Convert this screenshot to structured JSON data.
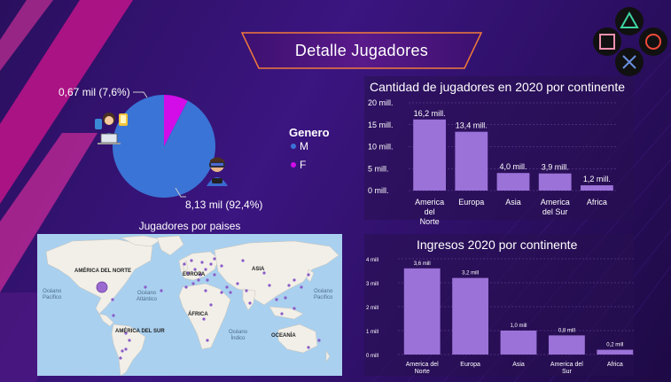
{
  "header": {
    "title": "Detalle Jugadores"
  },
  "pie": {
    "label_f": "0,67 mil (7,6%)",
    "label_m": "8,13 mil (92,4%)",
    "legend_title": "Genero",
    "legend": [
      {
        "key": "M",
        "color": "#3a74d6"
      },
      {
        "key": "F",
        "color": "#d20de8"
      }
    ],
    "chart_data": {
      "type": "pie",
      "slices": [
        {
          "name": "M",
          "value": 8.13,
          "percent": 92.4
        },
        {
          "name": "F",
          "value": 0.67,
          "percent": 7.6
        }
      ]
    }
  },
  "players_chart": {
    "title": "Cantidad de jugadores en 2020 por continente",
    "chart_data": {
      "type": "bar",
      "categories": [
        [
          "America",
          "del",
          "Norte"
        ],
        [
          "Europa"
        ],
        [
          "Asia"
        ],
        [
          "America",
          "del Sur"
        ],
        [
          "Africa"
        ]
      ],
      "values": [
        16.2,
        13.4,
        4.0,
        3.9,
        1.2
      ],
      "data_labels": [
        "16,2 mill.",
        "13,4 mill.",
        "4,0 mill.",
        "3,9 mill.",
        "1,2 mill."
      ],
      "yticks": [
        "0 mill.",
        "5 mill.",
        "10 mill.",
        "15 mill.",
        "20 mill."
      ],
      "ylim": [
        0,
        20
      ],
      "color": "#9b72d8"
    }
  },
  "revenue_chart": {
    "title": "Ingresos 2020 por continente",
    "chart_data": {
      "type": "bar",
      "categories": [
        [
          "America del",
          "Norte"
        ],
        [
          "Europa"
        ],
        [
          "Asia"
        ],
        [
          "America del",
          "Sur"
        ],
        [
          "Africa"
        ]
      ],
      "values": [
        3.6,
        3.2,
        1.0,
        0.8,
        0.2
      ],
      "data_labels": [
        "3,6 mill",
        "3,2 mill",
        "1,0 mill",
        "0,8 mill",
        "0,2 mill"
      ],
      "yticks": [
        "0 mill",
        "1 mill",
        "2 mill",
        "3 mill",
        "4 mill"
      ],
      "ylim": [
        0,
        4
      ],
      "color": "#9b72d8"
    }
  },
  "map": {
    "title": "Jugadores por paises",
    "labels": {
      "na": "AMÉRICA DEL NORTE",
      "eu": "EUROPA",
      "asia": "ASIA",
      "africa": "ÁFRICA",
      "sa": "AMÉRICA DEL SUR",
      "oceania": "OCEANÍA"
    },
    "oceans": {
      "pac_w": "Océano\nPacífico",
      "atl": "Océano\nAtlántico",
      "pac_e": "Océano\nPacífico",
      "indian": "Océano\nÍndico"
    }
  },
  "icons": [
    "triangle-icon",
    "circle-icon",
    "cross-icon",
    "square-icon",
    "woman-user-icon",
    "vr-gamer-icon"
  ]
}
